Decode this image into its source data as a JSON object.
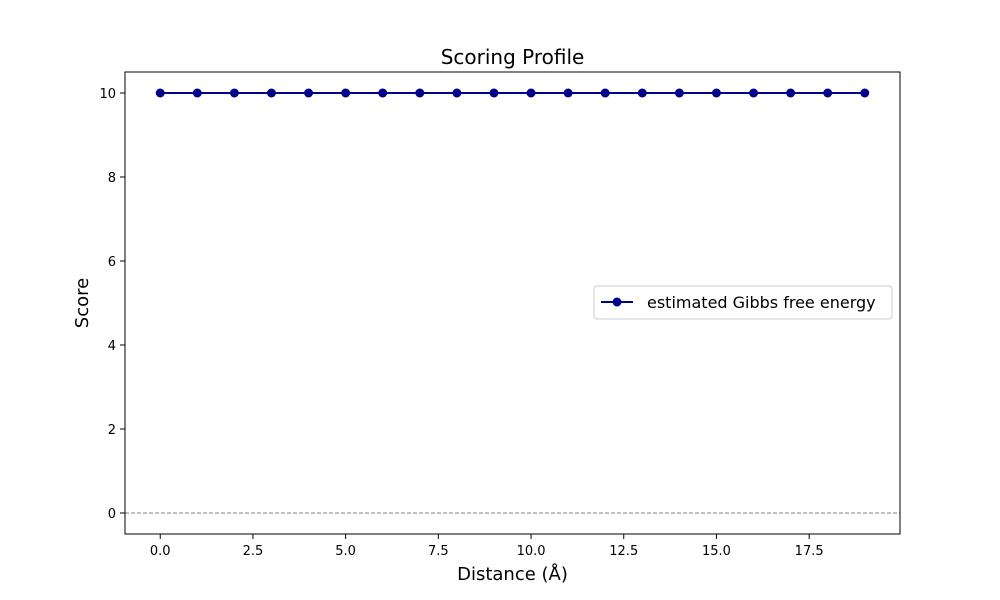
{
  "chart_data": {
    "type": "line",
    "title": "Scoring Profile",
    "xlabel": "Distance (Å)",
    "ylabel": "Score",
    "xlim": [
      -0.95,
      19.95
    ],
    "ylim": [
      -0.5,
      10.5
    ],
    "x_ticks": [
      0.0,
      2.5,
      5.0,
      7.5,
      10.0,
      12.5,
      15.0,
      17.5
    ],
    "x_tick_labels": [
      "0.0",
      "2.5",
      "5.0",
      "7.5",
      "10.0",
      "12.5",
      "15.0",
      "17.5"
    ],
    "y_ticks": [
      0,
      2,
      4,
      6,
      8,
      10
    ],
    "y_tick_labels": [
      "0",
      "2",
      "4",
      "6",
      "8",
      "10"
    ],
    "grid": false,
    "legend_position": "center-right",
    "reference_line": {
      "y": 0,
      "style": "dashed",
      "color": "#808080"
    },
    "series": [
      {
        "name": "estimated Gibbs free energy",
        "color": "#00008b",
        "marker": "circle",
        "x": [
          0,
          1,
          2,
          3,
          4,
          5,
          6,
          7,
          8,
          9,
          10,
          11,
          12,
          13,
          14,
          15,
          16,
          17,
          18,
          19
        ],
        "y": [
          10,
          10,
          10,
          10,
          10,
          10,
          10,
          10,
          10,
          10,
          10,
          10,
          10,
          10,
          10,
          10,
          10,
          10,
          10,
          10
        ]
      }
    ]
  }
}
